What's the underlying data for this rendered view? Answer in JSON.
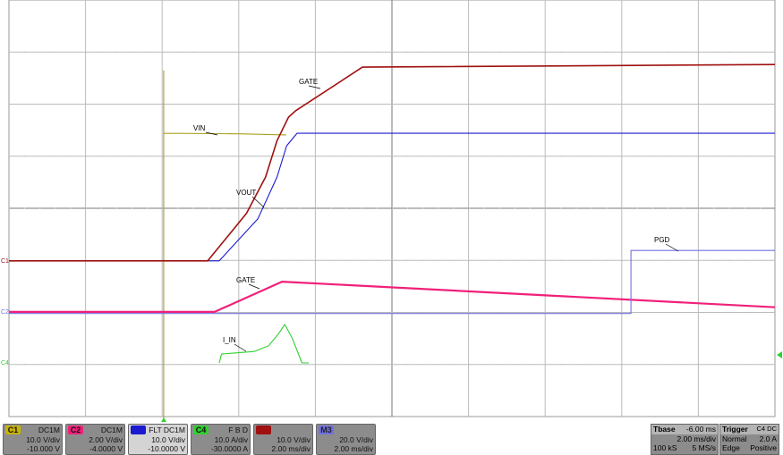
{
  "chart_data": {
    "type": "line",
    "title": "",
    "xlabel": "",
    "ylabel": "",
    "x_unit": "ms",
    "y_unit": "div",
    "xlim": [
      -16,
      4
    ],
    "ylim": [
      -4,
      4
    ],
    "grid": true,
    "series": [
      {
        "name": "VIN",
        "channel": "C1",
        "color": "#a8a020",
        "points": [
          [
            -16,
            -1.01
          ],
          [
            -11.96,
            -1.01
          ],
          [
            -11.96,
            2.64
          ],
          [
            -11.96,
            -4.05
          ],
          [
            -11.96,
            1.44
          ],
          [
            -10.0,
            1.43
          ],
          [
            -8.76,
            1.41
          ]
        ]
      },
      {
        "name": "VOUT",
        "channel": "C3",
        "color": "#1a1ad0",
        "points": [
          [
            -16,
            -1.01
          ],
          [
            -10.51,
            -1.01
          ],
          [
            -9.5,
            -0.2
          ],
          [
            -9.0,
            0.6
          ],
          [
            -8.75,
            1.2
          ],
          [
            -8.48,
            1.44
          ],
          [
            4,
            1.44
          ]
        ]
      },
      {
        "name": "GATE",
        "channel": "M2",
        "color": "#a01010",
        "points": [
          [
            -16,
            -1.01
          ],
          [
            -10.81,
            -1.01
          ],
          [
            -9.8,
            -0.1
          ],
          [
            -9.3,
            0.6
          ],
          [
            -9.0,
            1.3
          ],
          [
            -8.7,
            1.75
          ],
          [
            -8.52,
            1.87
          ],
          [
            -6.77,
            2.71
          ],
          [
            4,
            2.76
          ]
        ]
      },
      {
        "name": "GATE",
        "channel": "C2",
        "color": "#f0207a",
        "points": [
          [
            -16,
            -1.99
          ],
          [
            -10.63,
            -1.99
          ],
          [
            -8.87,
            -1.41
          ],
          [
            4,
            -1.9
          ]
        ]
      },
      {
        "name": "PGD",
        "channel": "M3",
        "color": "#7070e0",
        "points": [
          [
            -16,
            -2.02
          ],
          [
            0.24,
            -2.02
          ],
          [
            0.24,
            -0.81
          ],
          [
            4,
            -0.81
          ]
        ]
      },
      {
        "name": "I_IN",
        "channel": "C4",
        "color": "#30d030",
        "points": [
          [
            -10.51,
            -2.97
          ],
          [
            -10.45,
            -2.8
          ],
          [
            -9.6,
            -2.75
          ],
          [
            -9.22,
            -2.64
          ],
          [
            -8.95,
            -2.4
          ],
          [
            -8.8,
            -2.23
          ],
          [
            -8.6,
            -2.5
          ],
          [
            -8.35,
            -2.97
          ],
          [
            -8.17,
            -2.97
          ]
        ]
      }
    ],
    "labels": [
      "GATE",
      "VIN",
      "VOUT",
      "PGD",
      "GATE",
      "I_IN"
    ]
  },
  "channels": [
    {
      "tag": "C1",
      "color": "#c8b400",
      "coupling": "DC1M",
      "scale": "10.0 V/div",
      "offset": "-10.000 V"
    },
    {
      "tag": "C2",
      "color": "#f0207a",
      "coupling": "DC1M",
      "scale": "2.00 V/div",
      "offset": "-4.0000 V"
    },
    {
      "tag": "C3",
      "color": "#1a1ad0",
      "coupling": "FLT  DC1M",
      "scale": "10.0 V/div",
      "offset": "-10.0000 V"
    },
    {
      "tag": "C4",
      "color": "#30d030",
      "coupling": "F  B  D",
      "scale": "10.0 A/div",
      "offset": "-30.0000 A"
    },
    {
      "tag": "M2",
      "color": "#a01010",
      "coupling": "",
      "scale": "10.0 V/div",
      "offset": "2.00 ms/div"
    },
    {
      "tag": "M3",
      "color": "#7070e0",
      "coupling": "",
      "scale": "20.0 V/div",
      "offset": "2.00 ms/div"
    }
  ],
  "tbase": {
    "label": "Tbase",
    "delay": "-6.00 ms",
    "scale": "2.00 ms/div",
    "samples": "100 kS",
    "rate": "5 MS/s"
  },
  "trigger": {
    "label": "Trigger",
    "source": "C4 DC",
    "mode": "Normal",
    "level": "2.0 A",
    "type": "Edge",
    "slope": "Positive"
  },
  "markers": {
    "c1": "C1",
    "c2": "C2",
    "c4": "C4"
  }
}
